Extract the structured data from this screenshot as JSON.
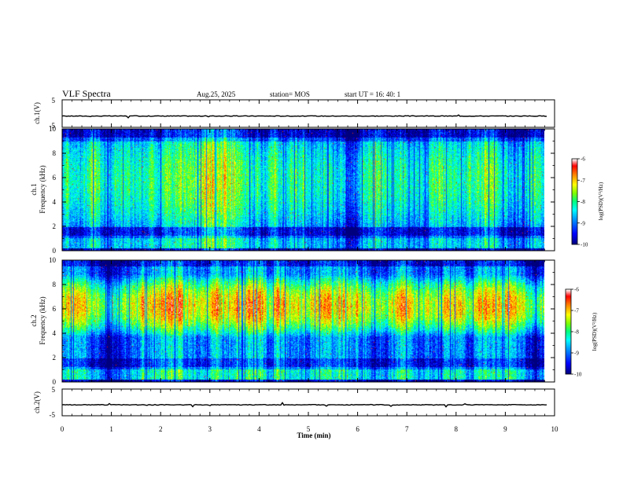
{
  "header": {
    "title": "VLF Spectra",
    "date": "Aug.25, 2025",
    "station": "station= MOS",
    "start_ut": "start  UT =   16: 40: 1"
  },
  "chart_data": {
    "type": "heatmap",
    "x_axis": {
      "label": "Time  (min)",
      "range": [
        0,
        10
      ],
      "ticks": [
        "0",
        "1",
        "2",
        "3",
        "4",
        "5",
        "6",
        "7",
        "8",
        "9",
        "10"
      ],
      "data_end": 9.85
    },
    "panels": [
      {
        "id": "ch1_waveform",
        "kind": "waveform",
        "ylabel": "ch.1(V)",
        "yrange": [
          -5,
          5
        ],
        "yticks": [
          "5",
          "-5"
        ],
        "level": -0.9
      },
      {
        "id": "ch1_spectrogram",
        "kind": "spectrogram",
        "ylabel_line1": "ch.1",
        "ylabel_line2": "Frequency  (kHz)",
        "yrange": [
          0,
          10
        ],
        "yticks": [
          "0",
          "2",
          "4",
          "6",
          "8",
          "10"
        ],
        "dominant_power_band_khz": [
          2,
          9.5
        ],
        "quiet_band_khz": [
          1.2,
          1.9
        ],
        "colorbar": {
          "label": "log(PSD)(V²/Hz)",
          "range": [
            -10,
            -6
          ],
          "ticks": [
            "-6",
            "-7",
            "-8",
            "-9",
            "-10"
          ]
        }
      },
      {
        "id": "ch2_spectrogram",
        "kind": "spectrogram",
        "ylabel_line1": "ch.2",
        "ylabel_line2": "Frequency  (kHz)",
        "yrange": [
          0,
          10
        ],
        "yticks": [
          "0",
          "2",
          "4",
          "6",
          "8",
          "10"
        ],
        "dominant_power_band_khz": [
          4.5,
          8
        ],
        "quiet_band_khz": [
          1.2,
          1.9
        ],
        "colorbar": {
          "label": "log(PSD)(V²/Hz)",
          "range": [
            -10,
            -6
          ],
          "ticks": [
            "-6",
            "-7",
            "-8",
            "-9",
            "-10"
          ]
        }
      },
      {
        "id": "ch2_waveform",
        "kind": "waveform",
        "ylabel": "ch.2(V)",
        "yrange": [
          -5,
          5
        ],
        "yticks": [
          "5",
          "-5"
        ],
        "level": -0.9
      }
    ]
  },
  "colors": {
    "axis": "#000000",
    "trace": "#000000",
    "colormap": [
      "#00007f",
      "#0000ff",
      "#00a0ff",
      "#00ffff",
      "#00ff80",
      "#80ff00",
      "#ffff00",
      "#ff8000",
      "#ff0000",
      "#ffffff"
    ]
  }
}
